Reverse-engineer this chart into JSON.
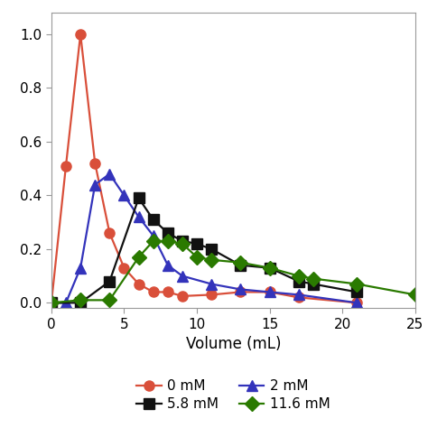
{
  "series": [
    {
      "label": "0 mM",
      "color": "#d94f3a",
      "marker": "o",
      "x": [
        0,
        1,
        2,
        3,
        4,
        5,
        6,
        7,
        8,
        9,
        11,
        13,
        15,
        17,
        21
      ],
      "y": [
        0.0,
        0.51,
        1.0,
        0.52,
        0.26,
        0.13,
        0.07,
        0.04,
        0.04,
        0.025,
        0.03,
        0.04,
        0.04,
        0.02,
        0.0
      ]
    },
    {
      "label": "2 mM",
      "color": "#3333bb",
      "marker": "^",
      "x": [
        0,
        1,
        2,
        3,
        4,
        5,
        6,
        7,
        8,
        9,
        11,
        13,
        15,
        17,
        21
      ],
      "y": [
        0.0,
        0.0,
        0.13,
        0.44,
        0.48,
        0.4,
        0.32,
        0.25,
        0.14,
        0.1,
        0.07,
        0.05,
        0.04,
        0.03,
        0.0
      ]
    },
    {
      "label": "5.8 mM",
      "color": "#111111",
      "marker": "s",
      "x": [
        0,
        2,
        4,
        6,
        7,
        8,
        9,
        10,
        11,
        13,
        15,
        17,
        18,
        21
      ],
      "y": [
        0.0,
        0.0,
        0.08,
        0.39,
        0.31,
        0.26,
        0.23,
        0.22,
        0.2,
        0.14,
        0.13,
        0.08,
        0.07,
        0.04
      ]
    },
    {
      "label": "11.6 mM",
      "color": "#2a7a00",
      "marker": "D",
      "x": [
        0,
        2,
        4,
        6,
        7,
        8,
        9,
        10,
        11,
        13,
        15,
        17,
        18,
        21,
        25
      ],
      "y": [
        0.0,
        0.01,
        0.01,
        0.17,
        0.23,
        0.23,
        0.22,
        0.17,
        0.16,
        0.15,
        0.13,
        0.1,
        0.09,
        0.07,
        0.03
      ]
    }
  ],
  "xlabel": "Volume (mL)",
  "xlim": [
    0,
    25
  ],
  "ylim": [
    -0.02,
    1.08
  ],
  "xticks": [
    0,
    5,
    10,
    15,
    20,
    25
  ],
  "yticks": [
    0.0,
    0.2,
    0.4,
    0.6,
    0.8,
    1.0
  ],
  "background_color": "#ffffff",
  "markersize": 8,
  "linewidth": 1.6,
  "spine_color": "#999999",
  "xlabel_fontsize": 12,
  "tick_fontsize": 11,
  "legend_fontsize": 11
}
